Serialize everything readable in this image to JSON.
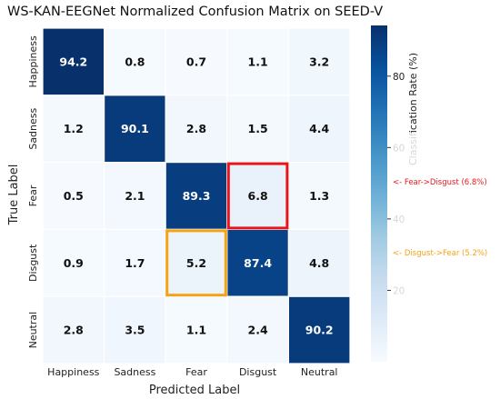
{
  "chart_data": {
    "type": "heatmap",
    "title": "WS-KAN-EEGNet Normalized Confusion Matrix on SEED-V",
    "xlabel": "Predicted Label",
    "ylabel": "True Label",
    "x_categories": [
      "Happiness",
      "Sadness",
      "Fear",
      "Disgust",
      "Neutral"
    ],
    "y_categories": [
      "Happiness",
      "Sadness",
      "Fear",
      "Disgust",
      "Neutral"
    ],
    "values": [
      [
        94.2,
        0.8,
        0.7,
        1.1,
        3.2
      ],
      [
        1.2,
        90.1,
        2.8,
        1.5,
        4.4
      ],
      [
        0.5,
        2.1,
        89.3,
        6.8,
        1.3
      ],
      [
        0.9,
        1.7,
        5.2,
        87.4,
        4.8
      ],
      [
        2.8,
        3.5,
        1.1,
        2.4,
        90.2
      ]
    ],
    "colormap": "Blues",
    "colorbar": {
      "label": "Classification Rate (%)",
      "range": [
        0,
        94.2
      ],
      "ticks": [
        20,
        40,
        60,
        80
      ]
    },
    "highlights": [
      {
        "row": 2,
        "col": 3,
        "color": "#e8161b"
      },
      {
        "row": 3,
        "col": 2,
        "color": "#f5a213"
      }
    ],
    "annotations": [
      {
        "text": "<- Fear->Disgust (6.8%)",
        "color": "#e8161b",
        "value": 50
      },
      {
        "text": "<- Disgust->Fear (5.2%)",
        "color": "#f5a213",
        "value": 30
      }
    ]
  }
}
